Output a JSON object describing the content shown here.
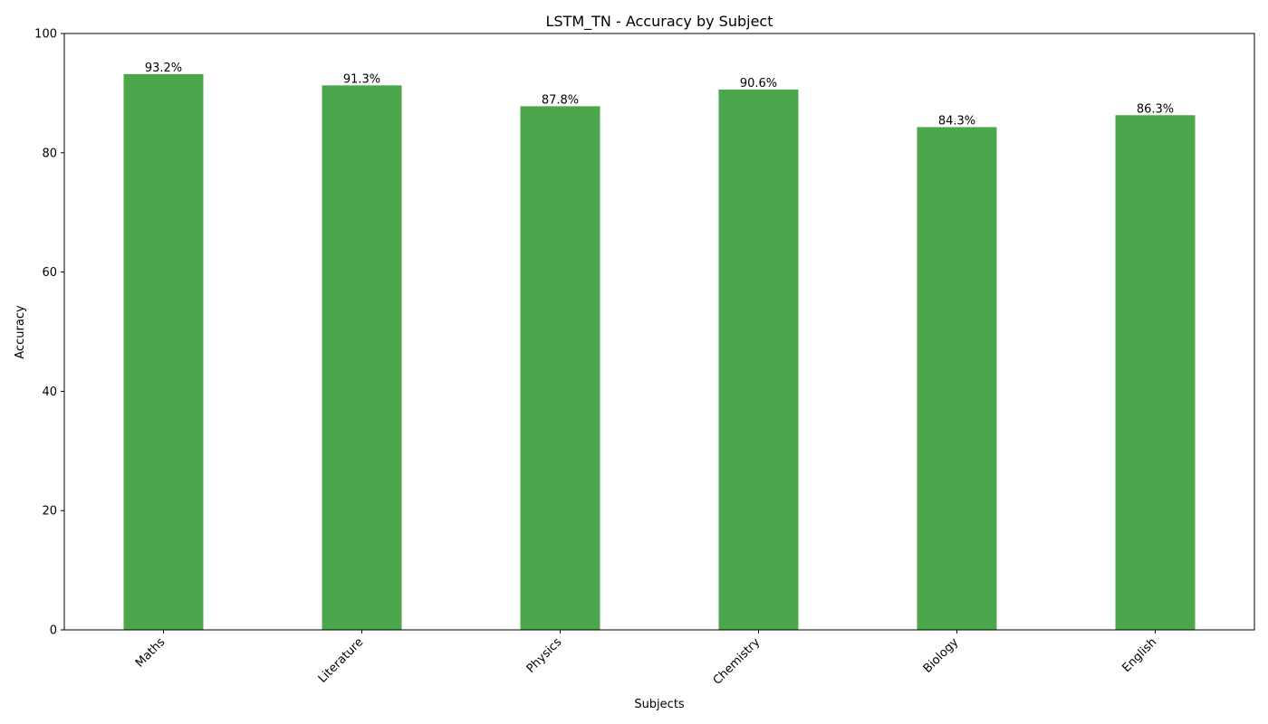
{
  "chart_data": {
    "type": "bar",
    "title": "LSTM_TN - Accuracy by Subject",
    "xlabel": "Subjects",
    "ylabel": "Accuracy",
    "categories": [
      "Maths",
      "Literature",
      "Physics",
      "Chemistry",
      "Biology",
      "English"
    ],
    "values": [
      93.2,
      91.3,
      87.8,
      90.6,
      84.3,
      86.3
    ],
    "value_labels": [
      "93.2%",
      "91.3%",
      "87.8%",
      "90.6%",
      "84.3%",
      "86.3%"
    ],
    "ylim": [
      0,
      100
    ],
    "yticks": [
      0,
      20,
      40,
      60,
      80,
      100
    ],
    "grid": false,
    "bar_color": "#4ca64c"
  }
}
